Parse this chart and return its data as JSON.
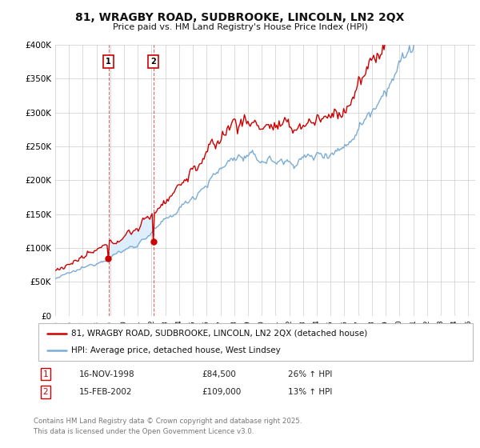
{
  "title": "81, WRAGBY ROAD, SUDBROOKE, LINCOLN, LN2 2QX",
  "subtitle": "Price paid vs. HM Land Registry's House Price Index (HPI)",
  "red_label": "81, WRAGBY ROAD, SUDBROOKE, LINCOLN, LN2 2QX (detached house)",
  "blue_label": "HPI: Average price, detached house, West Lindsey",
  "sale1_date": "16-NOV-1998",
  "sale1_price": 84500,
  "sale1_hpi": "26% ↑ HPI",
  "sale2_date": "15-FEB-2002",
  "sale2_price": 109000,
  "sale2_hpi": "13% ↑ HPI",
  "footer": "Contains HM Land Registry data © Crown copyright and database right 2025.\nThis data is licensed under the Open Government Licence v3.0.",
  "ylim": [
    0,
    400000
  ],
  "sale1_year": 1998.88,
  "sale2_year": 2002.12,
  "red_color": "#cc0000",
  "blue_color": "#7aacd6",
  "shade_color": "#ddeeff",
  "bg_color": "#ffffff",
  "grid_color": "#cccccc"
}
